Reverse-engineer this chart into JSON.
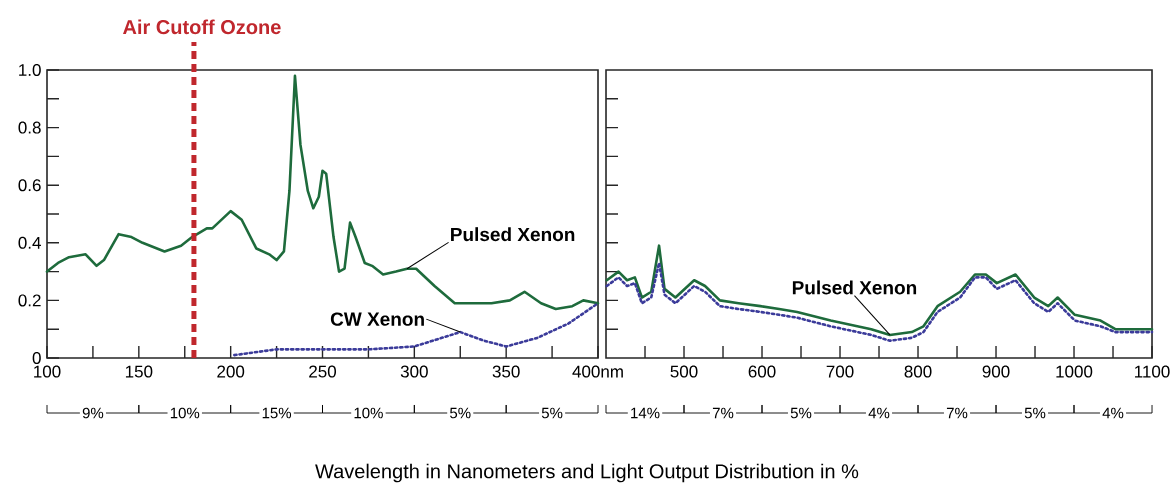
{
  "chart_data": [
    {
      "type": "line",
      "xlabel": "Wavelength in Nanometers and Light Output Distribution in %",
      "xlim": [
        100,
        400
      ],
      "ylim": [
        0,
        1
      ],
      "xticks": [
        100,
        {
          "value": 125,
          "label": null
        },
        150,
        {
          "value": 175,
          "label": null
        },
        200,
        {
          "value": 225,
          "label": null
        },
        250,
        {
          "value": 275,
          "label": null
        },
        300,
        {
          "value": 325,
          "label": null
        },
        350,
        {
          "value": 375,
          "label": null
        },
        {
          "value": 400,
          "label": "400nm"
        }
      ],
      "yticks": [
        0,
        {
          "value": 0.1,
          "label": null
        },
        0.2,
        {
          "value": 0.3,
          "label": null
        },
        0.4,
        {
          "value": 0.5,
          "label": null
        },
        0.6,
        {
          "value": 0.7,
          "label": null
        },
        0.8,
        {
          "value": 0.9,
          "label": null
        },
        {
          "value": 1,
          "label": "1.0"
        }
      ],
      "series": [
        {
          "name": "Pulsed Xenon",
          "color": "#1e6b3c",
          "line_style": "solid",
          "x": [
            100,
            106,
            112,
            121,
            127,
            131,
            139,
            146,
            152,
            164,
            173,
            179,
            187,
            190,
            200,
            206,
            214,
            221,
            225,
            229,
            232,
            235,
            238,
            242,
            245,
            248,
            250,
            252,
            256,
            259,
            262,
            265,
            268,
            273,
            277,
            283,
            290,
            296,
            301,
            311,
            322,
            334,
            342,
            352,
            360,
            369,
            377,
            386,
            392,
            400
          ],
          "values": [
            0.3,
            0.33,
            0.35,
            0.36,
            0.32,
            0.34,
            0.43,
            0.42,
            0.4,
            0.37,
            0.39,
            0.42,
            0.45,
            0.45,
            0.51,
            0.48,
            0.38,
            0.36,
            0.34,
            0.37,
            0.58,
            0.98,
            0.74,
            0.58,
            0.52,
            0.56,
            0.65,
            0.64,
            0.42,
            0.3,
            0.31,
            0.47,
            0.42,
            0.33,
            0.32,
            0.29,
            0.3,
            0.31,
            0.31,
            0.25,
            0.19,
            0.19,
            0.19,
            0.2,
            0.23,
            0.19,
            0.17,
            0.18,
            0.2,
            0.19
          ]
        },
        {
          "name": "CW Xenon",
          "color": "#3b3b9a",
          "line_style": "dotted",
          "x": [
            202,
            225,
            250,
            275,
            300,
            315,
            325,
            338,
            350,
            367,
            384,
            400
          ],
          "values": [
            0.01,
            0.03,
            0.03,
            0.03,
            0.04,
            0.07,
            0.09,
            0.06,
            0.04,
            0.07,
            0.12,
            0.19
          ]
        }
      ],
      "ref_lines": [
        {
          "axis": "x",
          "value": 180,
          "label": "Air Cutoff Ozone",
          "color": "#c0272d",
          "line_style": "dashed"
        }
      ],
      "annotations": [
        "9%",
        "10%",
        "15%",
        "10%",
        "5%",
        "5%"
      ]
    },
    {
      "type": "line",
      "xlim": [
        400,
        1100
      ],
      "ylim": [
        0,
        1
      ],
      "tick_labels": "x",
      "xticks": [
        {
          "value": 450,
          "label": null
        },
        500,
        {
          "value": 550,
          "label": null
        },
        600,
        {
          "value": 650,
          "label": null
        },
        700,
        {
          "value": 750,
          "label": null
        },
        800,
        {
          "value": 850,
          "label": null
        },
        900,
        {
          "value": 950,
          "label": null
        },
        1000,
        {
          "value": 1050,
          "label": null
        },
        1100
      ],
      "yticks": [
        0.1,
        0.2,
        0.3,
        0.4,
        0.5,
        0.6,
        0.7,
        0.8,
        0.9
      ],
      "series": [
        {
          "name": "Pulsed Xenon",
          "color": "#1e6b3c",
          "line_style": "solid",
          "x": [
            401,
            416,
            427,
            437,
            446,
            458,
            468,
            475,
            489,
            513,
            527,
            546,
            570,
            598,
            622,
            645,
            688,
            740,
            764,
            792,
            807,
            825,
            854,
            873,
            887,
            901,
            925,
            949,
            967,
            979,
            1001,
            1034,
            1053,
            1100
          ],
          "values": [
            0.27,
            0.3,
            0.27,
            0.28,
            0.21,
            0.23,
            0.39,
            0.24,
            0.21,
            0.27,
            0.25,
            0.2,
            0.19,
            0.18,
            0.17,
            0.16,
            0.13,
            0.1,
            0.08,
            0.09,
            0.11,
            0.18,
            0.23,
            0.29,
            0.29,
            0.26,
            0.29,
            0.21,
            0.18,
            0.21,
            0.15,
            0.13,
            0.1,
            0.1
          ]
        },
        {
          "color": "#3b3b9a",
          "line_style": "dotted",
          "x": [
            401,
            416,
            427,
            437,
            446,
            458,
            468,
            475,
            489,
            513,
            527,
            546,
            570,
            598,
            622,
            645,
            688,
            740,
            764,
            792,
            807,
            825,
            854,
            873,
            887,
            901,
            925,
            949,
            967,
            979,
            1001,
            1034,
            1053,
            1100
          ],
          "values": [
            0.25,
            0.28,
            0.25,
            0.26,
            0.19,
            0.21,
            0.33,
            0.22,
            0.19,
            0.25,
            0.23,
            0.18,
            0.17,
            0.16,
            0.15,
            0.14,
            0.11,
            0.08,
            0.06,
            0.07,
            0.09,
            0.16,
            0.21,
            0.28,
            0.28,
            0.24,
            0.27,
            0.19,
            0.16,
            0.19,
            0.13,
            0.11,
            0.09,
            0.09
          ]
        }
      ],
      "annotations": [
        "14%",
        "7%",
        "5%",
        "4%",
        "7%",
        "5%",
        "4%"
      ]
    }
  ]
}
